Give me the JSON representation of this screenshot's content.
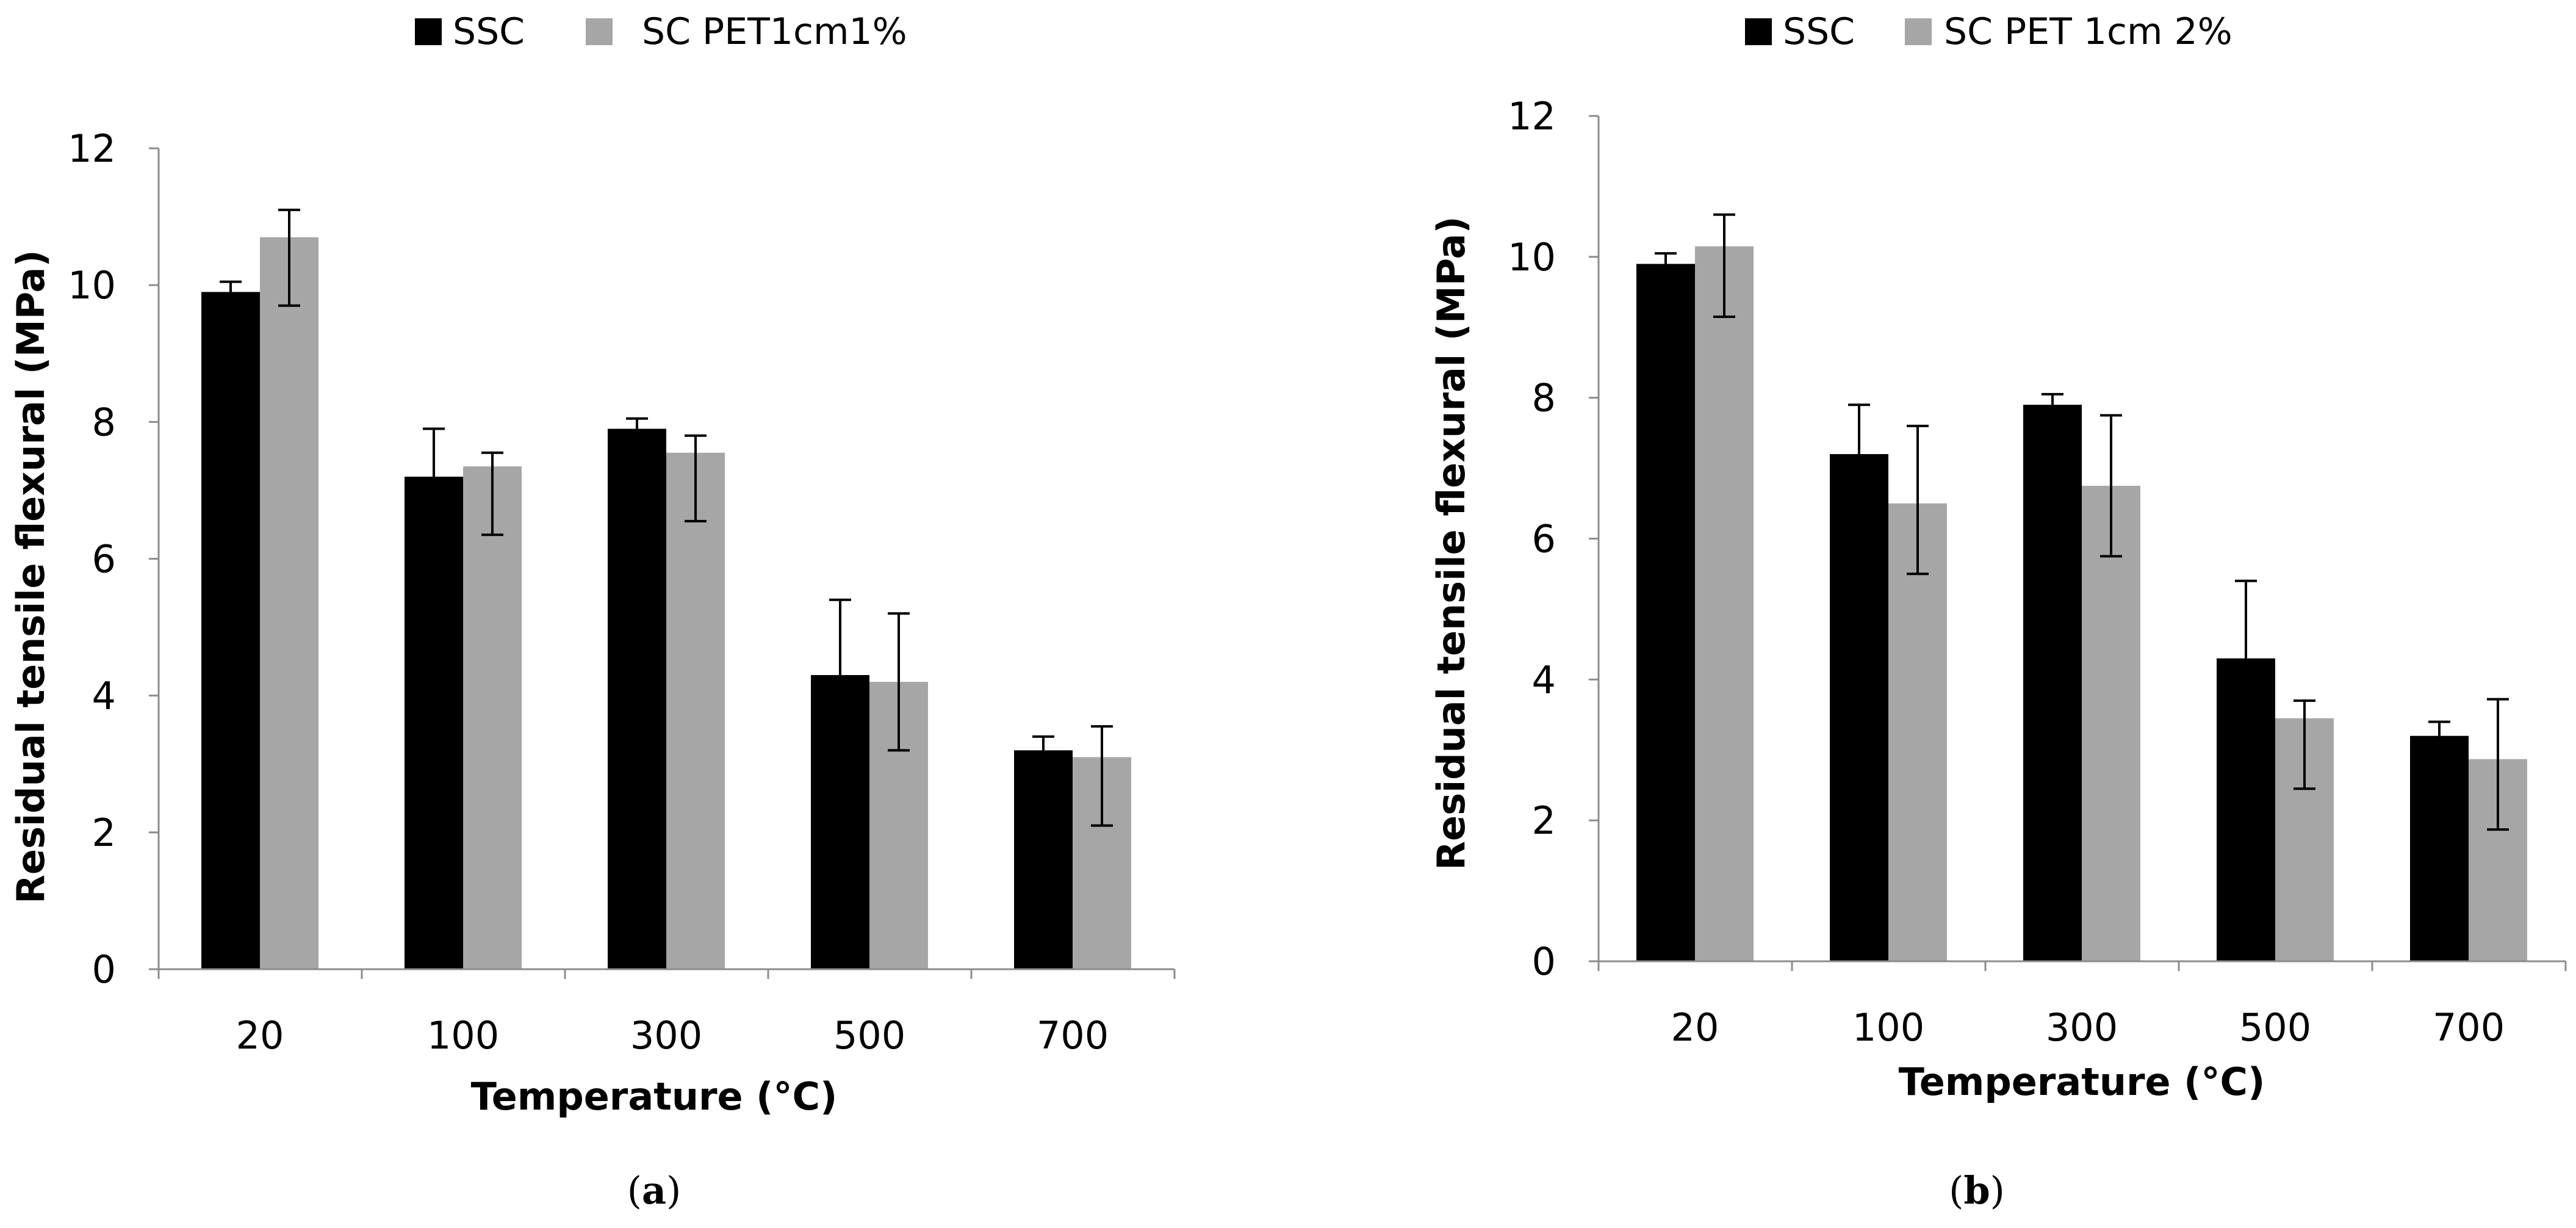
{
  "chart_data": [
    {
      "type": "bar",
      "panel": "(a)",
      "panel_letter": "a",
      "title": "",
      "xlabel": "Temperature (°C)",
      "ylabel": "Residual tensile flexural (MPa)",
      "ylim": [
        0,
        12
      ],
      "yticks": [
        "0",
        "2",
        "4",
        "6",
        "8",
        "10",
        "12"
      ],
      "grid": false,
      "legend_position": "top",
      "categories": [
        "20",
        "100",
        "300",
        "500",
        "700"
      ],
      "series": [
        {
          "name": "SSC",
          "color": "#000000",
          "values": [
            9.9,
            7.2,
            7.9,
            4.3,
            3.2
          ],
          "err_plus": [
            0.15,
            0.7,
            0.15,
            1.1,
            0.2
          ],
          "err_minus": [
            0.0,
            0.0,
            0.0,
            0.0,
            0.0
          ]
        },
        {
          "name": "SC PET1cm1%",
          "color": "#a6a6a6",
          "values": [
            10.7,
            7.35,
            7.55,
            4.2,
            3.1
          ],
          "err_plus": [
            0.4,
            0.2,
            0.25,
            1.0,
            0.45
          ],
          "err_minus": [
            1.0,
            1.0,
            1.0,
            1.0,
            1.0
          ]
        }
      ]
    },
    {
      "type": "bar",
      "panel": "(b)",
      "panel_letter": "b",
      "title": "",
      "xlabel": "Temperature (°C)",
      "ylabel": "Residual tensile flexural  (MPa)",
      "ylim": [
        0,
        12
      ],
      "yticks": [
        "0",
        "2",
        "4",
        "6",
        "8",
        "10",
        "12"
      ],
      "grid": false,
      "legend_position": "top",
      "categories": [
        "20",
        "100",
        "300",
        "500",
        "700"
      ],
      "series": [
        {
          "name": "SSC",
          "color": "#000000",
          "values": [
            9.9,
            7.2,
            7.9,
            4.3,
            3.2
          ],
          "err_plus": [
            0.15,
            0.7,
            0.15,
            1.1,
            0.2
          ],
          "err_minus": [
            0.0,
            0.0,
            0.0,
            0.0,
            0.0
          ]
        },
        {
          "name": "SC PET 1cm 2%",
          "color": "#a6a6a6",
          "values": [
            10.15,
            6.5,
            6.75,
            3.45,
            2.87
          ],
          "err_plus": [
            0.45,
            1.1,
            1.0,
            0.25,
            0.85
          ],
          "err_minus": [
            1.0,
            1.0,
            1.0,
            1.0,
            1.0
          ]
        }
      ]
    }
  ]
}
